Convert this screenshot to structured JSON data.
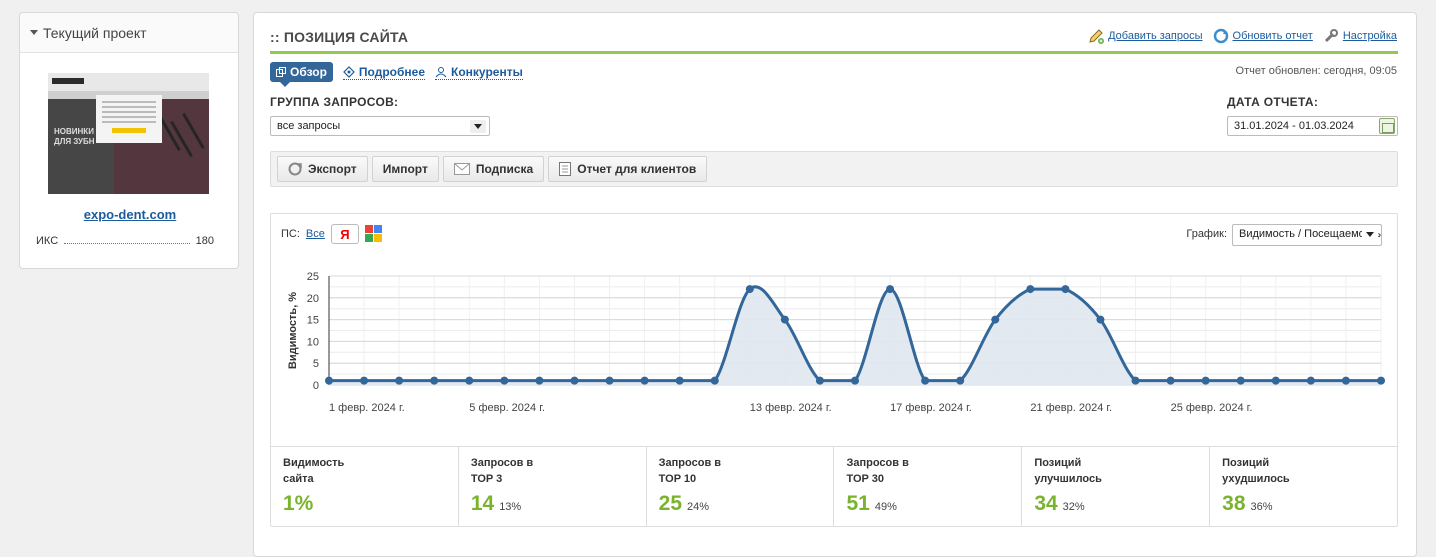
{
  "sidebar": {
    "header": "Текущий проект",
    "thumb_text": "НОВИНКИ\nДЛЯ ЗУБН",
    "site": "expo-dent.com",
    "iks_label": "ИКС",
    "iks_value": "180"
  },
  "main": {
    "title": ":: ПОЗИЦИЯ САЙТА",
    "links": {
      "add": "Добавить запросы",
      "refresh": "Обновить отчет",
      "settings": "Настройка"
    },
    "tabs": {
      "overview": "Обзор",
      "details": "Подробнее",
      "competitors": "Конкуренты"
    },
    "updated": "Отчет обновлен: сегодня, 09:05",
    "group_label": "ГРУППА ЗАПРОСОВ:",
    "group_value": "все запросы",
    "date_label": "ДАТА ОТЧЕТА:",
    "date_value": "31.01.2024 - 01.03.2024",
    "toolbar": {
      "export": "Экспорт",
      "import": "Импорт",
      "subscribe": "Подписка",
      "client_report": "Отчет для клиентов"
    },
    "ps_label": "ПС:",
    "ps_all": "Все",
    "yandex_glyph": "Я",
    "graph_label": "График:",
    "graph_value": "Видимость / Посещаемость"
  },
  "chart_data": {
    "type": "area",
    "ylabel": "Видимость, %",
    "ylim": [
      0,
      25
    ],
    "yticks": [
      0,
      5,
      10,
      15,
      20,
      25
    ],
    "x_tick_labels": [
      "1 февр. 2024 г.",
      "5 февр. 2024 г.",
      "13 февр. 2024 г.",
      "17 февр. 2024 г.",
      "21 февр. 2024 г.",
      "25 февр. 2024 г."
    ],
    "x_tick_index": [
      0,
      4,
      12,
      16,
      20,
      24
    ],
    "values": [
      1,
      1,
      1,
      1,
      1,
      1,
      1,
      1,
      1,
      1,
      1,
      1,
      22,
      15,
      1,
      1,
      22,
      1,
      1,
      15,
      22,
      22,
      15,
      1,
      1,
      1,
      1,
      1,
      1,
      1,
      1
    ],
    "line_color": "#336699",
    "fill_color": "#dfe7f0",
    "grid": true
  },
  "metrics": [
    {
      "label": "Видимость\nсайта",
      "value": "1%",
      "pct": ""
    },
    {
      "label": "Запросов в\nTOP 3",
      "value": "14",
      "pct": "13%"
    },
    {
      "label": "Запросов в\nTOP 10",
      "value": "25",
      "pct": "24%"
    },
    {
      "label": "Запросов в\nTOP 30",
      "value": "51",
      "pct": "49%"
    },
    {
      "label": "Позиций\nулучшилось",
      "value": "34",
      "pct": "32%"
    },
    {
      "label": "Позиций\nухудшилось",
      "value": "38",
      "pct": "36%"
    }
  ]
}
